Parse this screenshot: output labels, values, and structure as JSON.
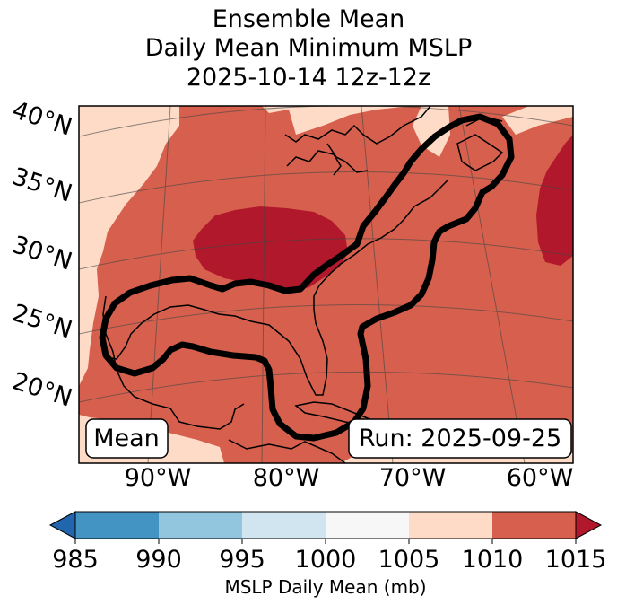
{
  "title": {
    "line1": "Ensemble Mean",
    "line2": "Daily Mean Minimum MSLP",
    "line3": "2025-10-14 12z-12z"
  },
  "map": {
    "lat_labels": [
      "40°N",
      "35°N",
      "30°N",
      "25°N",
      "20°N"
    ],
    "lon_labels": [
      "90°W",
      "80°W",
      "70°W",
      "60°W"
    ],
    "mean_label": "Mean",
    "run_label": "Run: 2025-09-25"
  },
  "colorbar": {
    "label": "MSLP Daily Mean (mb)",
    "ticks": [
      "985",
      "990",
      "995",
      "1000",
      "1005",
      "1010",
      "1015"
    ],
    "colors": [
      "#4393c3",
      "#92c5de",
      "#d1e5f0",
      "#f7f7f7",
      "#fddbc7",
      "#d6604d"
    ],
    "under_color": "#2166ac",
    "over_color": "#b2182b"
  },
  "fill_colors": {
    "light": "#fddbc7",
    "mid": "#d6604d",
    "dark": "#b2182b"
  }
}
